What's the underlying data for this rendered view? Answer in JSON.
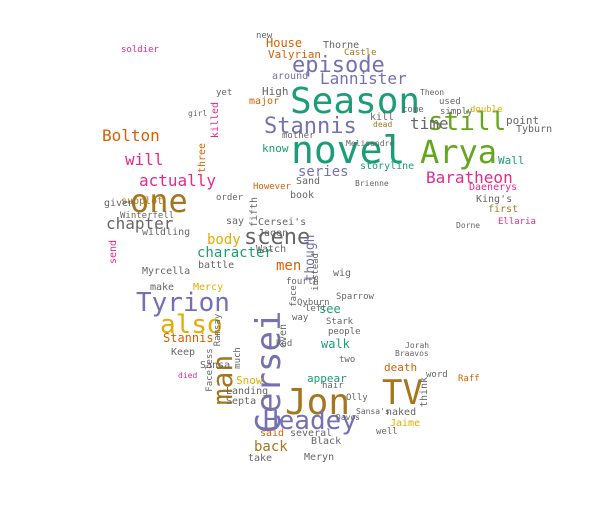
{
  "word_cloud": {
    "palette": {
      "teal": "#1b9e77",
      "orange": "#d95f02",
      "purple": "#7570b3",
      "magenta": "#e7298a",
      "green": "#66a61e",
      "gold": "#e6ab02",
      "brown": "#a6761d",
      "grey": "#666666"
    },
    "words": [
      "Season",
      "novel",
      "Arya",
      "one",
      "Cersei",
      "Jon",
      "TV",
      "Tyrion",
      "also",
      "man",
      "Headey",
      "still",
      "Stannis",
      "episode",
      "scene",
      "Lannister",
      "Baratheon",
      "Bolton",
      "actually",
      "chapter",
      "will",
      "time",
      "body",
      "series",
      "character",
      "House",
      "Thorne",
      "Castle",
      "High",
      "around",
      "know",
      "Wall",
      "point",
      "Tyburn",
      "storyline",
      "kill",
      "dead",
      "used",
      "simply",
      "double",
      "Daenerys",
      "King's",
      "first",
      "Ellaria",
      "Winterfell",
      "subplot",
      "given",
      "wildling",
      "send",
      "Myrcella",
      "make",
      "Mercy",
      "Stannis'",
      "Keep",
      "Snow",
      "Landing",
      "Sansa",
      "Septa",
      "back",
      "said",
      "take",
      "Meryn",
      "several",
      "Black",
      "naked",
      "death",
      "Jaime",
      "well",
      "think",
      "word",
      "Raff",
      "appear",
      "hair",
      "two",
      "walk",
      "people",
      "see",
      "Stark",
      "left",
      "way",
      "men",
      "Qyburn",
      "though",
      "instead",
      "wig",
      "battle",
      "Watch",
      "Cersei's",
      "Jaqen",
      "fifth",
      "book",
      "However",
      "mother",
      "Sand",
      "major",
      "yet",
      "killed",
      "three",
      "girl",
      "Valyrian",
      "new",
      "soldier",
      "come",
      "Sparrow",
      "Ramsay",
      "much",
      "even",
      "Red",
      "face",
      "fourth",
      "died",
      "Faceless",
      "order",
      "say",
      "Olly",
      "Davos",
      "Melisandre",
      "Brienne",
      "Sansa's",
      "Theon",
      "Dorne",
      "Braavos",
      "Jorah"
    ]
  }
}
